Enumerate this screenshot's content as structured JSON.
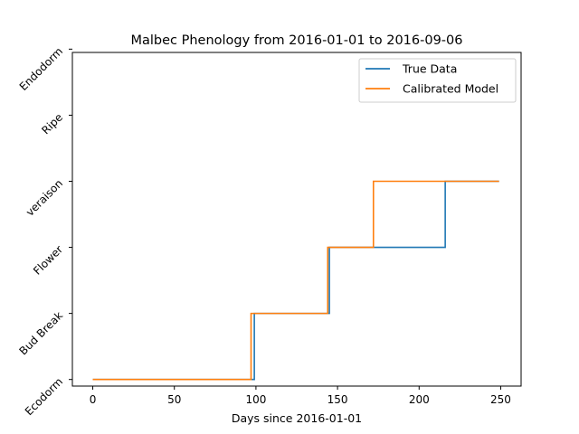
{
  "chart_data": {
    "type": "line",
    "title": "Malbec Phenology from 2016-01-01 to 2016-09-06",
    "xlabel": "Days since 2016-01-01",
    "ylabel": "",
    "xlim": [
      -12.5,
      262.5
    ],
    "ylim": [
      -0.1,
      4.95
    ],
    "x_ticks": [
      0,
      50,
      100,
      150,
      200,
      250
    ],
    "y_ticks": [
      0,
      1,
      2,
      3,
      4,
      5
    ],
    "y_tick_labels": [
      "Ecodorm",
      "Bud Break",
      "Flower",
      "veraison",
      "Ripe",
      "Endodorm"
    ],
    "grid": false,
    "legend_position": "top-right",
    "series": [
      {
        "name": "True Data",
        "color": "#1f77b4",
        "x": [
          0,
          99,
          99,
          145,
          145,
          216,
          216,
          249
        ],
        "y": [
          0,
          0,
          1,
          1,
          2,
          2,
          3,
          3
        ]
      },
      {
        "name": "Calibrated Model",
        "color": "#ff7f0e",
        "x": [
          0,
          97,
          97,
          144,
          144,
          172,
          172,
          249
        ],
        "y": [
          0,
          0,
          1,
          1,
          2,
          2,
          3,
          3
        ]
      }
    ]
  }
}
